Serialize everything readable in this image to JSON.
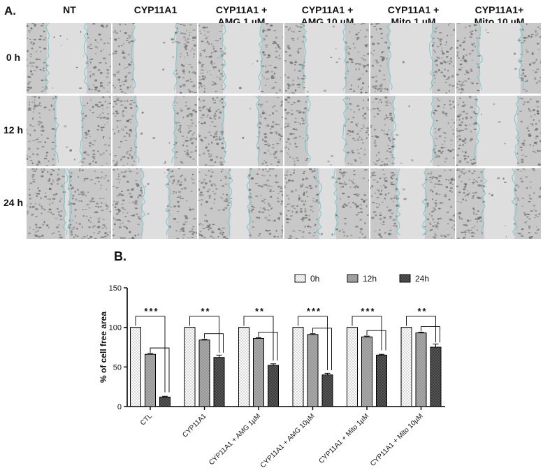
{
  "panel_a": {
    "label": "A.",
    "columns": [
      {
        "line1": "NT",
        "line2": ""
      },
      {
        "line1": "CYP11A1",
        "line2": ""
      },
      {
        "line1": "CYP11A1 +",
        "line2": "AMG 1 µM"
      },
      {
        "line1": "CYP11A1 +",
        "line2": "AMG 10 µM"
      },
      {
        "line1": "CYP11A1 +",
        "line2": "Mito 1 µM"
      },
      {
        "line1": "CYP11A1+",
        "line2": "Mito 10 µM"
      }
    ],
    "rows": [
      "0 h",
      "12 h",
      "24 h"
    ],
    "gap_fraction": [
      [
        0.47,
        0.5,
        0.45,
        0.48,
        0.5,
        0.48
      ],
      [
        0.3,
        0.44,
        0.4,
        0.44,
        0.46,
        0.48
      ],
      [
        0.05,
        0.3,
        0.22,
        0.2,
        0.32,
        0.36
      ]
    ],
    "colors": {
      "tile_bg": "#c8c8c8",
      "gap": "#dedede",
      "cell": "#6a6a6a",
      "edge": "#7cc8cc"
    }
  },
  "panel_b": {
    "label": "B."
  },
  "chart_data": {
    "type": "bar",
    "ylabel": "% of cell free area",
    "ylim": [
      0,
      150
    ],
    "yticks": [
      0,
      50,
      100,
      150
    ],
    "categories": [
      "CTL",
      "CYP11A1",
      "CYP11A1 + AMG 1µM",
      "CYP11A1 + AMG 10µM",
      "CYP11A1 + Mito 1µM",
      "CYP11A1 + Mito 10µM"
    ],
    "series": [
      {
        "name": "0h",
        "values": [
          100,
          100,
          100,
          100,
          100,
          100
        ],
        "errors": [
          0,
          0,
          0,
          0,
          0,
          0
        ],
        "fill": "#ffffff",
        "pattern": "dots"
      },
      {
        "name": "12h",
        "values": [
          66,
          84,
          86,
          91,
          88,
          93
        ],
        "errors": [
          1,
          1,
          1,
          1,
          1,
          1
        ],
        "fill": "#a9a9a9",
        "pattern": "dots"
      },
      {
        "name": "24h",
        "values": [
          12,
          62,
          52,
          40,
          65,
          75
        ],
        "errors": [
          1,
          3,
          2,
          2,
          1,
          4
        ],
        "fill": "#5c5c5c",
        "pattern": "crosshatch"
      }
    ],
    "significance": [
      "***",
      "**",
      "**",
      "***",
      "***",
      "**"
    ],
    "legend_position": "top-right"
  }
}
